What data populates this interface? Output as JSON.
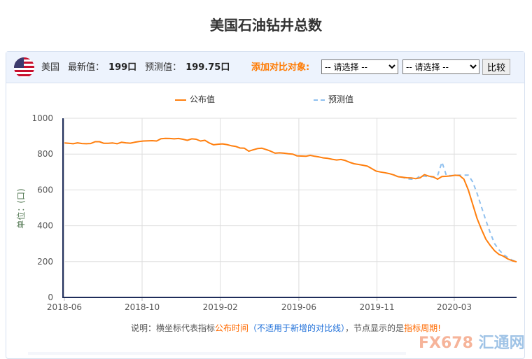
{
  "title": "美国石油钻井总数",
  "header": {
    "country": "美国",
    "latest_label": "最新值：",
    "latest_value": "199口",
    "forecast_label": "预测值：",
    "forecast_value": "199.75口",
    "compare_label": "添加对比对象:",
    "select1": "-- 请选择 --",
    "select2": "-- 请选择 --",
    "compare_button": "比较"
  },
  "colors": {
    "published": "#ff7f0e",
    "forecast": "#8fc0ef",
    "accent": "#ff7a00"
  },
  "note": {
    "p1": "说明：横坐标代表指标",
    "p2": "公布时间",
    "p3": "（不适用于新增的对比线）",
    "p4": "，节点显示的是",
    "p5": "指标周期!"
  },
  "watermark": {
    "a": "FX678",
    "b": "汇通网"
  },
  "chart_data": {
    "type": "line",
    "title": "美国石油钻井总数",
    "ylabel": "单位：(口)",
    "ylim": [
      0,
      1000
    ],
    "yticks": [
      0,
      200,
      400,
      600,
      800,
      1000
    ],
    "xlabel": "",
    "x_unit": "week index from 2018-06",
    "xlim": [
      0,
      103
    ],
    "xticks": [
      {
        "label": "2018-06",
        "at": 0
      },
      {
        "label": "2018-10",
        "at": 17.7
      },
      {
        "label": "2019-02",
        "at": 35.5
      },
      {
        "label": "2019-06",
        "at": 53.4
      },
      {
        "label": "2019-11",
        "at": 71.2
      },
      {
        "label": "2020-03",
        "at": 88.8
      }
    ],
    "legend": "top-center",
    "grid": true,
    "series": [
      {
        "name": "公布值",
        "start": 0,
        "values": [
          862,
          860,
          858,
          863,
          859,
          858,
          859,
          869,
          869,
          860,
          860,
          862,
          858,
          866,
          863,
          861,
          866,
          870,
          873,
          874,
          875,
          873,
          886,
          888,
          887,
          885,
          887,
          883,
          877,
          885,
          883,
          873,
          877,
          862,
          852,
          855,
          857,
          853,
          847,
          843,
          834,
          833,
          816,
          824,
          831,
          833,
          825,
          816,
          805,
          807,
          805,
          802,
          800,
          790,
          789,
          788,
          793,
          788,
          784,
          779,
          776,
          771,
          767,
          770,
          764,
          754,
          746,
          742,
          738,
          733,
          719,
          705,
          700,
          696,
          691,
          684,
          674,
          671,
          668,
          667,
          663,
          667,
          685,
          677,
          673,
          660,
          675,
          676,
          678,
          682,
          680,
          660,
          600,
          520,
          440,
          380,
          325,
          290,
          260,
          240,
          230,
          215,
          205,
          199
        ]
      },
      {
        "name": "预测值",
        "start": 75,
        "values": [
          684,
          674,
          671,
          662,
          660,
          660,
          678,
          677,
          674,
          672,
          680,
          755,
          680,
          680,
          681,
          683,
          683,
          683,
          645,
          580,
          505,
          430,
          360,
          300,
          265,
          240,
          222,
          208,
          199
        ]
      }
    ]
  }
}
